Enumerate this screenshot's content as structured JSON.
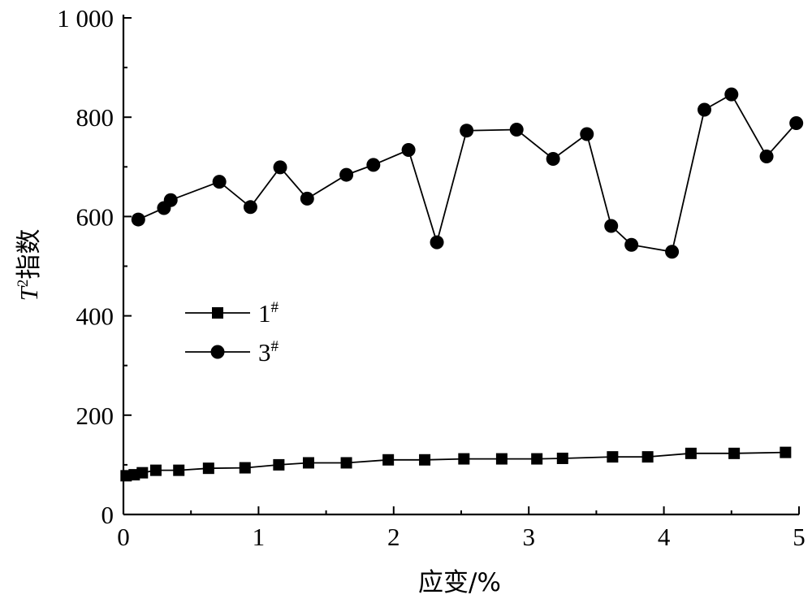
{
  "chart_data": {
    "type": "line",
    "xlabel": "应变/%",
    "ylabel_main": "T",
    "ylabel_sup": "2",
    "ylabel_rest": "指数",
    "xlim": [
      0,
      5
    ],
    "ylim": [
      0,
      1000
    ],
    "xticks": [
      0,
      1,
      2,
      3,
      4,
      5
    ],
    "xtick_labels": [
      "0",
      "1",
      "2",
      "3",
      "4",
      "5"
    ],
    "yticks": [
      0,
      200,
      400,
      600,
      800,
      1000
    ],
    "ytick_labels": [
      "0",
      "200",
      "400",
      "600",
      "800",
      "1 000"
    ],
    "grid": false,
    "legend_position": "center-left",
    "series": [
      {
        "name": "1",
        "name_sup": "#",
        "marker": "square",
        "color": "#000000",
        "x": [
          0.02,
          0.08,
          0.14,
          0.24,
          0.41,
          0.63,
          0.9,
          1.15,
          1.37,
          1.65,
          1.96,
          2.23,
          2.52,
          2.8,
          3.06,
          3.25,
          3.62,
          3.88,
          4.2,
          4.52,
          4.9
        ],
        "y": [
          78,
          80,
          84,
          89,
          89,
          93,
          94,
          100,
          104,
          104,
          110,
          110,
          112,
          112,
          112,
          113,
          116,
          116,
          123,
          123,
          125
        ]
      },
      {
        "name": "3",
        "name_sup": "#",
        "marker": "circle",
        "color": "#000000",
        "x": [
          0.11,
          0.3,
          0.35,
          0.71,
          0.94,
          1.16,
          1.36,
          1.65,
          1.85,
          2.11,
          2.32,
          2.54,
          2.91,
          3.18,
          3.43,
          3.61,
          3.76,
          4.06,
          4.3,
          4.5,
          4.76,
          4.98
        ],
        "y": [
          594,
          617,
          633,
          670,
          619,
          699,
          636,
          684,
          704,
          734,
          548,
          773,
          775,
          716,
          766,
          581,
          543,
          529,
          815,
          846,
          721,
          788
        ]
      }
    ]
  }
}
